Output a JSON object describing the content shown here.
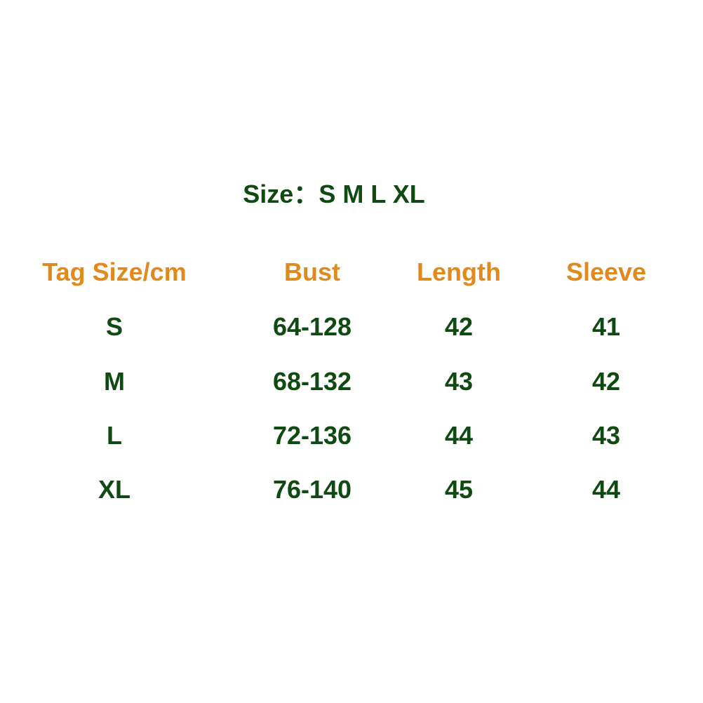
{
  "title": {
    "label": "Size：",
    "sizes": "S M L XL"
  },
  "table": {
    "headers": [
      "Tag Size/cm",
      "Bust",
      "Length",
      "Sleeve"
    ],
    "rows": [
      [
        "S",
        "64-128",
        "42",
        "41"
      ],
      [
        "M",
        "68-132",
        "43",
        "42"
      ],
      [
        "L",
        "72-136",
        "44",
        "43"
      ],
      [
        "XL",
        "76-140",
        "45",
        "44"
      ]
    ]
  },
  "colors": {
    "header": "#e08a1e",
    "text": "#0f4a12",
    "background": "#ffffff"
  }
}
